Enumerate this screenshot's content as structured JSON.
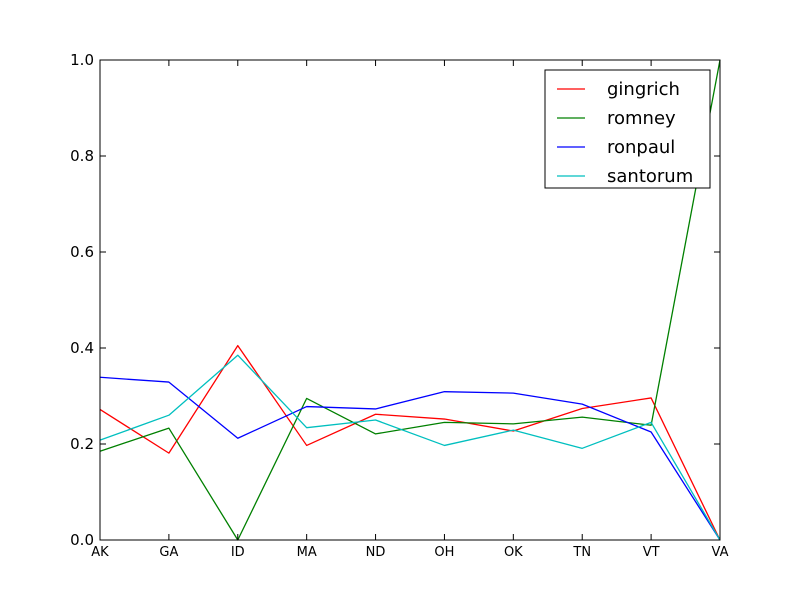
{
  "chart_data": {
    "type": "line",
    "categories": [
      "AK",
      "GA",
      "ID",
      "MA",
      "ND",
      "OH",
      "OK",
      "TN",
      "VT",
      "VA"
    ],
    "ylim": [
      0.0,
      1.0
    ],
    "yticks": [
      "0.0",
      "0.2",
      "0.4",
      "0.6",
      "0.8",
      "1.0"
    ],
    "grid": false,
    "legend_position": "top-right",
    "series": [
      {
        "name": "gingrich",
        "color": "#ff0000",
        "values": [
          0.272,
          0.181,
          0.405,
          0.197,
          0.262,
          0.252,
          0.227,
          0.274,
          0.296,
          0.0
        ]
      },
      {
        "name": "romney",
        "color": "#008000",
        "values": [
          0.185,
          0.233,
          0.0,
          0.295,
          0.221,
          0.245,
          0.242,
          0.256,
          0.239,
          1.0
        ]
      },
      {
        "name": "ronpaul",
        "color": "#0000ff",
        "values": [
          0.339,
          0.329,
          0.212,
          0.278,
          0.273,
          0.309,
          0.306,
          0.283,
          0.225,
          0.0
        ]
      },
      {
        "name": "santorum",
        "color": "#00bfbf",
        "values": [
          0.208,
          0.26,
          0.385,
          0.234,
          0.25,
          0.197,
          0.229,
          0.191,
          0.245,
          0.0
        ]
      }
    ]
  }
}
